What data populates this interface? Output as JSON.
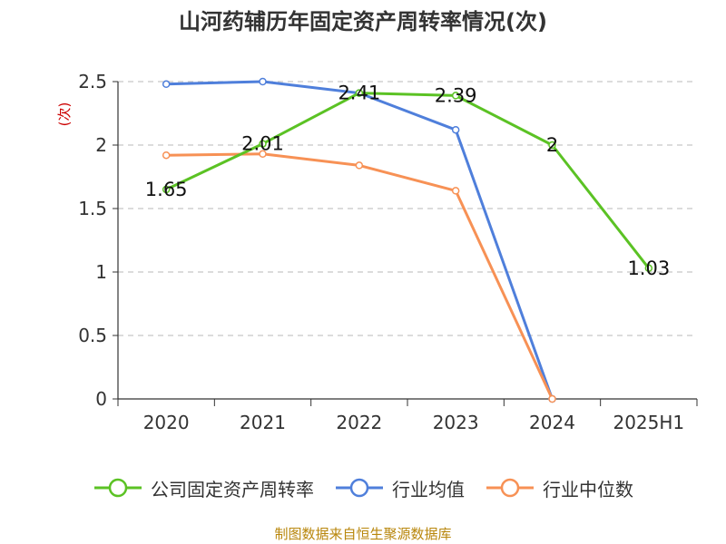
{
  "chart_data": {
    "type": "line",
    "title": "山河药辅历年固定资产周转率情况(次)",
    "ylabel": "(次)",
    "categories": [
      "2020",
      "2021",
      "2022",
      "2023",
      "2024",
      "2025H1"
    ],
    "ylim": [
      0,
      2.5
    ],
    "yticks": [
      "0",
      "0.5",
      "1",
      "1.5",
      "2",
      "2.5"
    ],
    "grid": true,
    "legend_position": "bottom",
    "series": [
      {
        "name": "公司固定资产周转率",
        "color": "#5bc224",
        "values": [
          1.65,
          2.01,
          2.41,
          2.39,
          2,
          1.03
        ],
        "labels": [
          "1.65",
          "2.01",
          "2.41",
          "2.39",
          "2",
          "1.03"
        ]
      },
      {
        "name": "行业均值",
        "color": "#4f7fdb",
        "values": [
          2.48,
          2.5,
          2.41,
          2.12,
          0,
          null
        ]
      },
      {
        "name": "行业中位数",
        "color": "#f79155",
        "values": [
          1.92,
          1.93,
          1.84,
          1.64,
          0,
          null
        ]
      }
    ]
  },
  "source": "制图数据来自恒生聚源数据库"
}
